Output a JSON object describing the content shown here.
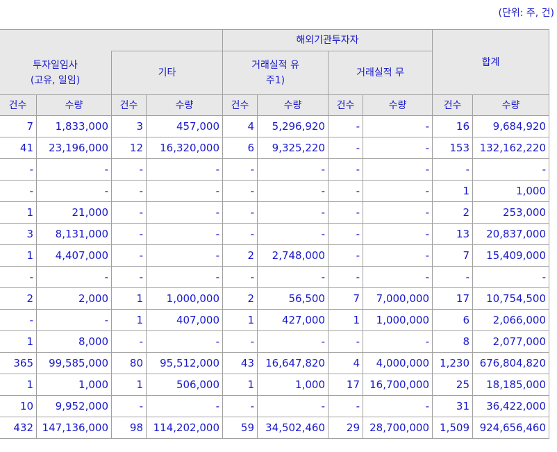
{
  "unit_label": "(단위: 주, 건)",
  "header": {
    "foreign_group": "해외기관투자자",
    "total": "합계",
    "groups": [
      "투자일임사\n(고유, 일임)",
      "기타",
      "거래실적 유\n주1)",
      "거래실적 무"
    ],
    "count": "건수",
    "qty": "수량"
  },
  "rows": [
    [
      "7",
      "1,833,000",
      "3",
      "457,000",
      "4",
      "5,296,920",
      "-",
      "-",
      "16",
      "9,684,920"
    ],
    [
      "41",
      "23,196,000",
      "12",
      "16,320,000",
      "6",
      "9,325,220",
      "-",
      "-",
      "153",
      "132,162,220"
    ],
    [
      "-",
      "-",
      "-",
      "-",
      "-",
      "-",
      "-",
      "-",
      "-",
      "-"
    ],
    [
      "-",
      "-",
      "-",
      "-",
      "-",
      "-",
      "-",
      "-",
      "1",
      "1,000"
    ],
    [
      "1",
      "21,000",
      "-",
      "-",
      "-",
      "-",
      "-",
      "-",
      "2",
      "253,000"
    ],
    [
      "3",
      "8,131,000",
      "-",
      "-",
      "-",
      "-",
      "-",
      "-",
      "13",
      "20,837,000"
    ],
    [
      "1",
      "4,407,000",
      "-",
      "-",
      "2",
      "2,748,000",
      "-",
      "-",
      "7",
      "15,409,000"
    ],
    [
      "-",
      "-",
      "-",
      "-",
      "-",
      "-",
      "-",
      "-",
      "-",
      "-"
    ],
    [
      "2",
      "2,000",
      "1",
      "1,000,000",
      "2",
      "56,500",
      "7",
      "7,000,000",
      "17",
      "10,754,500"
    ],
    [
      "-",
      "-",
      "1",
      "407,000",
      "1",
      "427,000",
      "1",
      "1,000,000",
      "6",
      "2,066,000"
    ],
    [
      "1",
      "8,000",
      "-",
      "-",
      "-",
      "-",
      "-",
      "-",
      "8",
      "2,077,000"
    ],
    [
      "365",
      "99,585,000",
      "80",
      "95,512,000",
      "43",
      "16,647,820",
      "4",
      "4,000,000",
      "1,230",
      "676,804,820"
    ],
    [
      "1",
      "1,000",
      "1",
      "506,000",
      "1",
      "1,000",
      "17",
      "16,700,000",
      "25",
      "18,185,000"
    ],
    [
      "10",
      "9,952,000",
      "-",
      "-",
      "-",
      "-",
      "-",
      "-",
      "31",
      "36,422,000"
    ],
    [
      "432",
      "147,136,000",
      "98",
      "114,202,000",
      "59",
      "34,502,460",
      "29",
      "28,700,000",
      "1,509",
      "924,656,460"
    ]
  ]
}
